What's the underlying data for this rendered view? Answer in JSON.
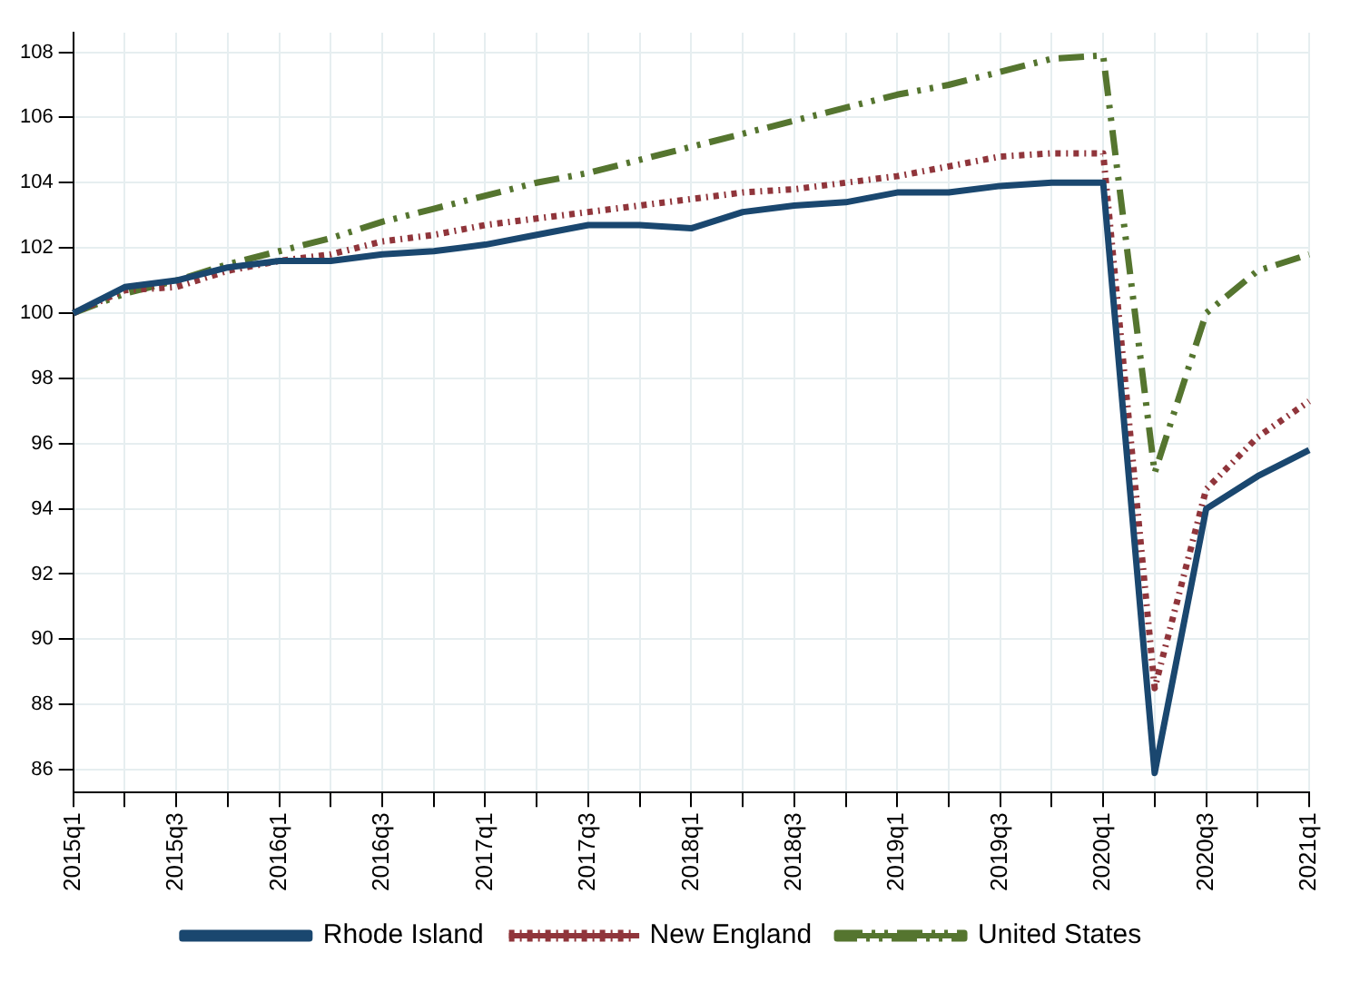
{
  "chart_data": {
    "type": "line",
    "categories": [
      "2015q1",
      null,
      "2015q3",
      null,
      "2016q1",
      null,
      "2016q3",
      null,
      "2017q1",
      null,
      "2017q3",
      null,
      "2018q1",
      null,
      "2018q3",
      null,
      "2019q1",
      null,
      "2019q3",
      null,
      "2020q1",
      null,
      "2020q3",
      null,
      "2021q1"
    ],
    "series": [
      {
        "name": "Rhode Island",
        "color": "#1a476f",
        "line_style": "solid",
        "values": [
          100,
          100.8,
          101.0,
          101.4,
          101.6,
          101.6,
          101.8,
          101.9,
          102.1,
          102.4,
          102.7,
          102.7,
          102.6,
          103.1,
          103.3,
          103.4,
          103.7,
          103.7,
          103.9,
          104.0,
          104.0,
          85.9,
          94.0,
          95.0,
          95.8
        ]
      },
      {
        "name": "New England",
        "color": "#90353b",
        "line_style": "dotted",
        "values": [
          100,
          100.7,
          100.8,
          101.3,
          101.6,
          101.8,
          102.2,
          102.4,
          102.7,
          102.9,
          103.1,
          103.3,
          103.5,
          103.7,
          103.8,
          104.0,
          104.2,
          104.5,
          104.8,
          104.9,
          104.9,
          88.5,
          94.6,
          96.2,
          97.3
        ]
      },
      {
        "name": "United States",
        "color": "#55752f",
        "line_style": "dashed",
        "values": [
          100,
          100.6,
          101.0,
          101.5,
          101.9,
          102.3,
          102.8,
          103.2,
          103.6,
          104.0,
          104.3,
          104.7,
          105.1,
          105.5,
          105.9,
          106.3,
          106.7,
          107.0,
          107.4,
          107.8,
          107.9,
          95.1,
          100.0,
          101.3,
          101.8
        ]
      }
    ],
    "ylim": [
      85.3,
      108.6
    ],
    "yticks": [
      86,
      88,
      90,
      92,
      94,
      96,
      98,
      100,
      102,
      104,
      106,
      108
    ],
    "grid": true,
    "legend": "bottom",
    "marker": "none"
  }
}
